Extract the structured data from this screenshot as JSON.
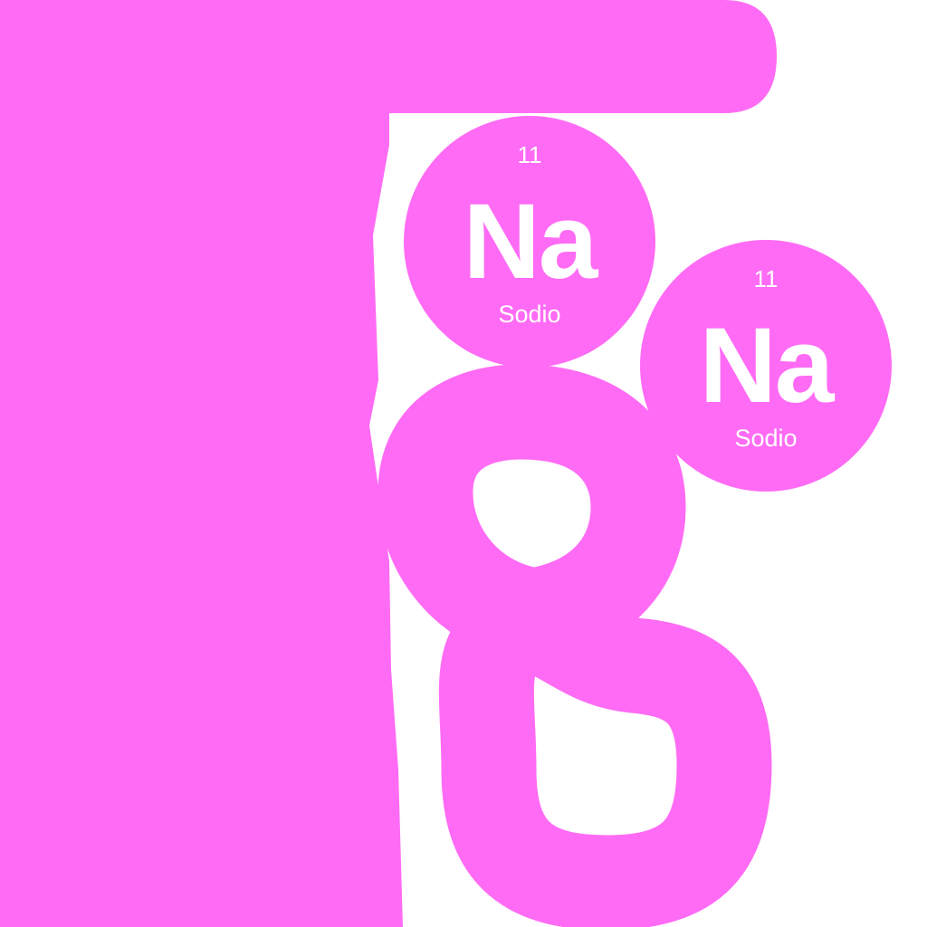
{
  "colors": {
    "background": "#ffffff",
    "accent": "#ff6bf5",
    "text": "#ffffff"
  },
  "badges": [
    {
      "number": "11",
      "symbol": "Na",
      "name": "Sodio"
    },
    {
      "number": "11",
      "symbol": "Na",
      "name": "Sodio"
    }
  ]
}
